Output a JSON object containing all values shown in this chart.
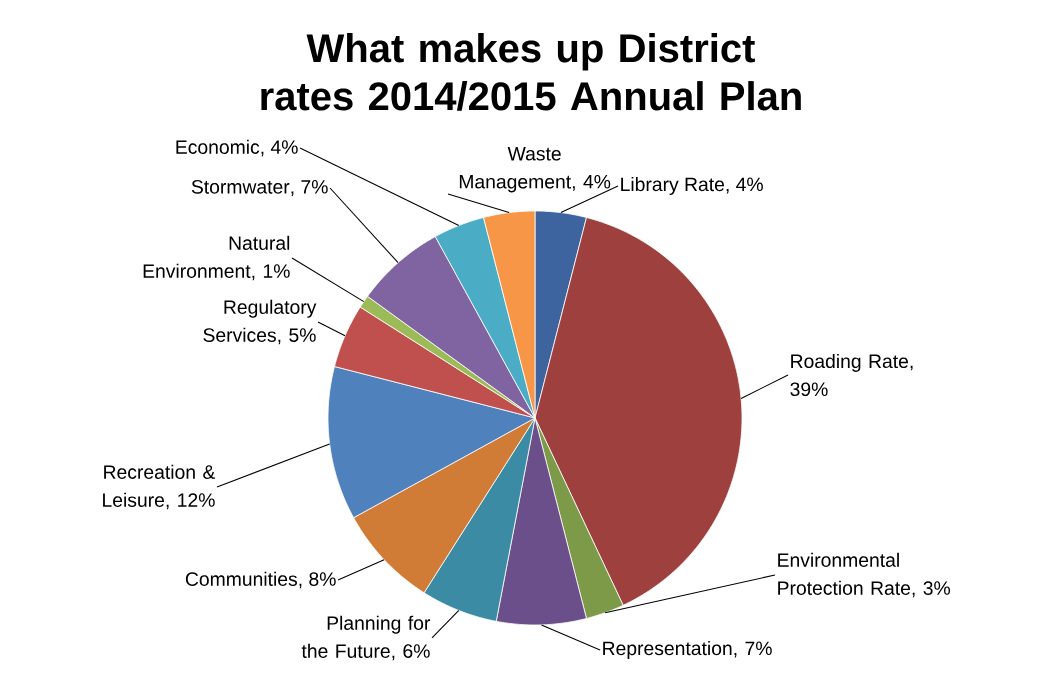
{
  "chart_data": {
    "type": "pie",
    "title": "What makes up District rates 2014/2015 Annual Plan",
    "categories": [
      "Library Rate",
      "Roading Rate",
      "Environmental Protection Rate",
      "Representation",
      "Planning for the Future",
      "Communities",
      "Recreation & Leisure",
      "Regulatory Services",
      "Natural Environment",
      "Stormwater",
      "Economic",
      "Waste Management"
    ],
    "values": [
      4,
      39,
      3,
      7,
      6,
      8,
      12,
      5,
      1,
      7,
      4,
      4
    ],
    "colors": [
      "#3e64a0",
      "#9e413e",
      "#7d9a48",
      "#6a4f8a",
      "#3a8ba3",
      "#d07c36",
      "#4f81bd",
      "#c0504d",
      "#9bbb59",
      "#8064a2",
      "#4bacc6",
      "#f79646"
    ],
    "value_labels": [
      ", 4%",
      ", 39%",
      ", 3%",
      ", 7%",
      ", 6%",
      ", 8%",
      ", 12%",
      ", 5%",
      ", 1%",
      ", 7%",
      ", 4%",
      ", 4%"
    ]
  }
}
